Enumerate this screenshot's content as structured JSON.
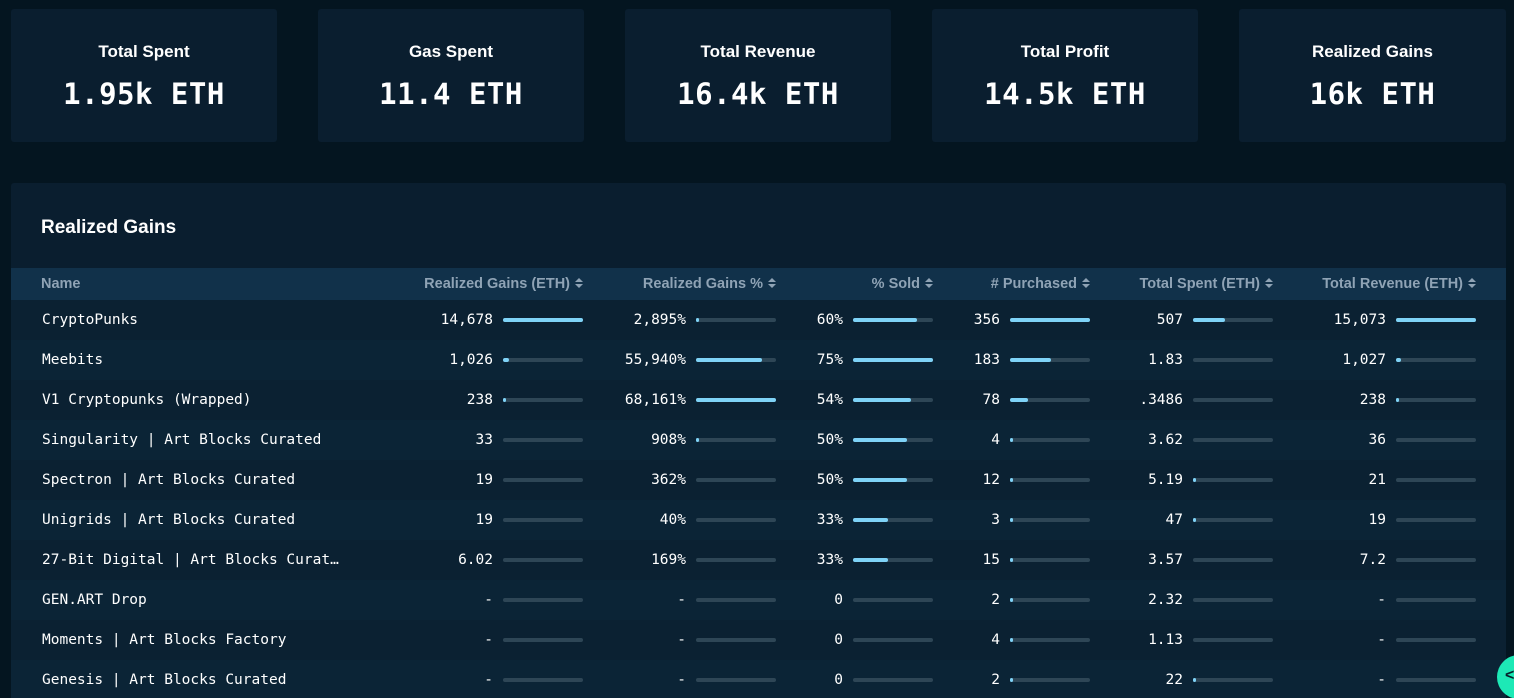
{
  "stats": [
    {
      "label": "Total Spent",
      "value": "1.95k ETH"
    },
    {
      "label": "Gas Spent",
      "value": "11.4 ETH"
    },
    {
      "label": "Total Revenue",
      "value": "16.4k ETH"
    },
    {
      "label": "Total Profit",
      "value": "14.5k ETH"
    },
    {
      "label": "Realized Gains",
      "value": "16k ETH"
    }
  ],
  "table": {
    "title": "Realized Gains",
    "headers": {
      "name": "Name",
      "gains": "Realized Gains (ETH)",
      "gains_pct": "Realized Gains %",
      "sold": "% Sold",
      "purchased": "# Purchased",
      "spent": "Total Spent (ETH)",
      "revenue": "Total Revenue (ETH)"
    },
    "rows": [
      {
        "name": "CryptoPunks",
        "gains": "14,678",
        "gains_pct": "2,895%",
        "sold": "60%",
        "purchased": "356",
        "spent": "507",
        "revenue": "15,073"
      },
      {
        "name": "Meebits",
        "gains": "1,026",
        "gains_pct": "55,940%",
        "sold": "75%",
        "purchased": "183",
        "spent": "1.83",
        "revenue": "1,027"
      },
      {
        "name": "V1 Cryptopunks (Wrapped)",
        "gains": "238",
        "gains_pct": "68,161%",
        "sold": "54%",
        "purchased": "78",
        "spent": ".3486",
        "revenue": "238"
      },
      {
        "name": "Singularity | Art Blocks Curated",
        "gains": "33",
        "gains_pct": "908%",
        "sold": "50%",
        "purchased": "4",
        "spent": "3.62",
        "revenue": "36"
      },
      {
        "name": "Spectron | Art Blocks Curated",
        "gains": "19",
        "gains_pct": "362%",
        "sold": "50%",
        "purchased": "12",
        "spent": "5.19",
        "revenue": "21"
      },
      {
        "name": "Unigrids | Art Blocks Curated",
        "gains": "19",
        "gains_pct": "40%",
        "sold": "33%",
        "purchased": "3",
        "spent": "47",
        "revenue": "19"
      },
      {
        "name": "27-Bit Digital | Art Blocks Curat…",
        "gains": "6.02",
        "gains_pct": "169%",
        "sold": "33%",
        "purchased": "15",
        "spent": "3.57",
        "revenue": "7.2"
      },
      {
        "name": "GEN.ART Drop",
        "gains": "-",
        "gains_pct": "-",
        "sold": "0",
        "purchased": "2",
        "spent": "2.32",
        "revenue": "-"
      },
      {
        "name": "Moments | Art Blocks Factory",
        "gains": "-",
        "gains_pct": "-",
        "sold": "0",
        "purchased": "4",
        "spent": "1.13",
        "revenue": "-"
      },
      {
        "name": "Genesis | Art Blocks Curated",
        "gains": "-",
        "gains_pct": "-",
        "sold": "0",
        "purchased": "2",
        "spent": "22",
        "revenue": "-"
      }
    ],
    "bar_fractions": [
      {
        "gains": 1.0,
        "gains_pct": 0.03,
        "sold": 0.8,
        "purchased": 1.0,
        "spent": 0.4,
        "revenue": 1.0
      },
      {
        "gains": 0.07,
        "gains_pct": 0.82,
        "sold": 1.0,
        "purchased": 0.51,
        "spent": 0.0,
        "revenue": 0.06
      },
      {
        "gains": 0.02,
        "gains_pct": 1.0,
        "sold": 0.72,
        "purchased": 0.22,
        "spent": 0.0,
        "revenue": 0.02
      },
      {
        "gains": 0.0,
        "gains_pct": 0.01,
        "sold": 0.67,
        "purchased": 0.01,
        "spent": 0.0,
        "revenue": 0.0
      },
      {
        "gains": 0.0,
        "gains_pct": 0.0,
        "sold": 0.67,
        "purchased": 0.03,
        "spent": 0.01,
        "revenue": 0.0
      },
      {
        "gains": 0.0,
        "gains_pct": 0.0,
        "sold": 0.44,
        "purchased": 0.01,
        "spent": 0.04,
        "revenue": 0.0
      },
      {
        "gains": 0.0,
        "gains_pct": 0.0,
        "sold": 0.44,
        "purchased": 0.04,
        "spent": 0.0,
        "revenue": 0.0
      },
      {
        "gains": 0.0,
        "gains_pct": 0.0,
        "sold": 0.0,
        "purchased": 0.01,
        "spent": 0.0,
        "revenue": 0.0
      },
      {
        "gains": 0.0,
        "gains_pct": 0.0,
        "sold": 0.0,
        "purchased": 0.01,
        "spent": 0.0,
        "revenue": 0.0
      },
      {
        "gains": 0.0,
        "gains_pct": 0.0,
        "sold": 0.0,
        "purchased": 0.01,
        "spent": 0.04,
        "revenue": 0.0
      }
    ]
  },
  "colors": {
    "accent": "#7fd3f7",
    "fab": "#1de9b6"
  },
  "fab": {
    "glyph": "<",
    "icon": "chevron-left-icon"
  }
}
